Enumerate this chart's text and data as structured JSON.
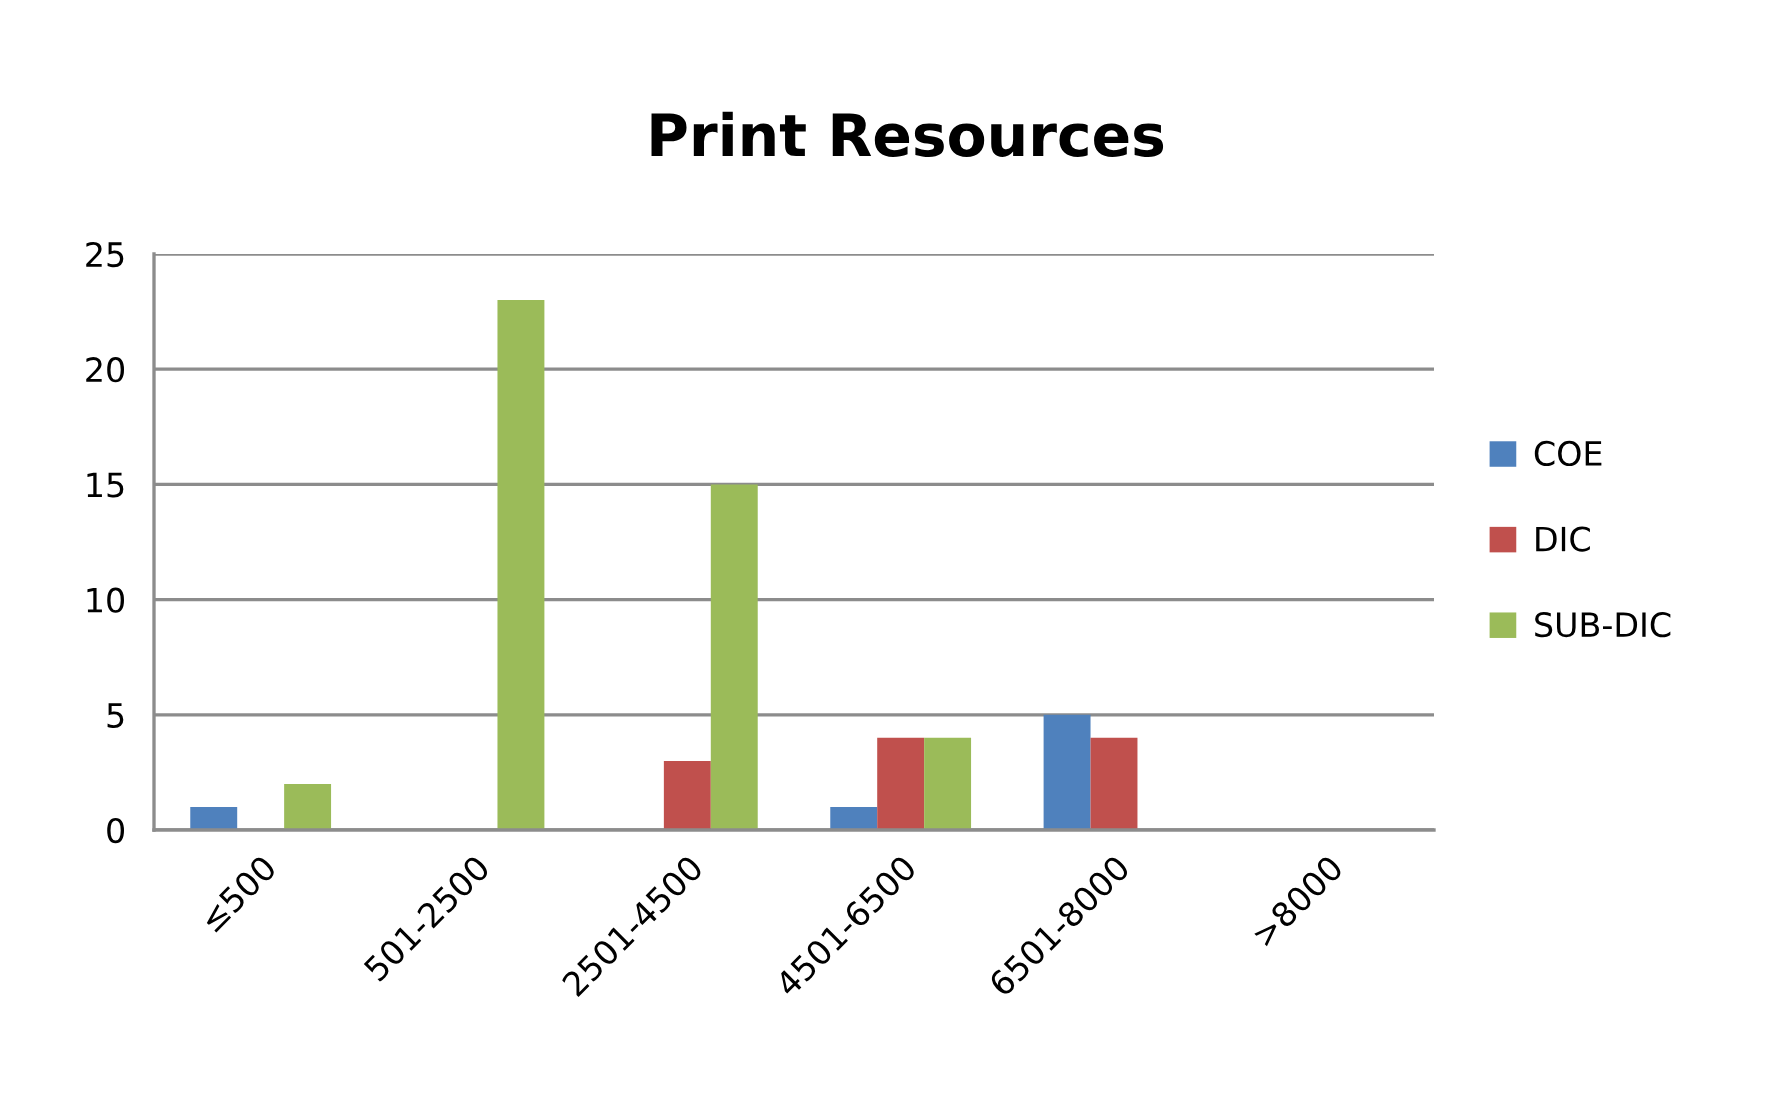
{
  "chart_data": {
    "type": "bar",
    "title": "Print Resources",
    "categories": [
      "≤500",
      "501-2500",
      "2501-4500",
      "4501-6500",
      "6501-8000",
      ">8000"
    ],
    "series": [
      {
        "name": "COE",
        "color": "#4f81bd",
        "values": [
          1,
          0,
          0,
          1,
          5,
          0
        ]
      },
      {
        "name": "DIC",
        "color": "#c0504d",
        "values": [
          0,
          0,
          3,
          4,
          4,
          0
        ]
      },
      {
        "name": "SUB-DIC",
        "color": "#9bbb59",
        "values": [
          2,
          23,
          15,
          4,
          0,
          0
        ]
      }
    ],
    "ylim": [
      0,
      25
    ],
    "yticks": [
      0,
      5,
      10,
      15,
      20,
      25
    ],
    "grid": "y",
    "legend": "right"
  }
}
